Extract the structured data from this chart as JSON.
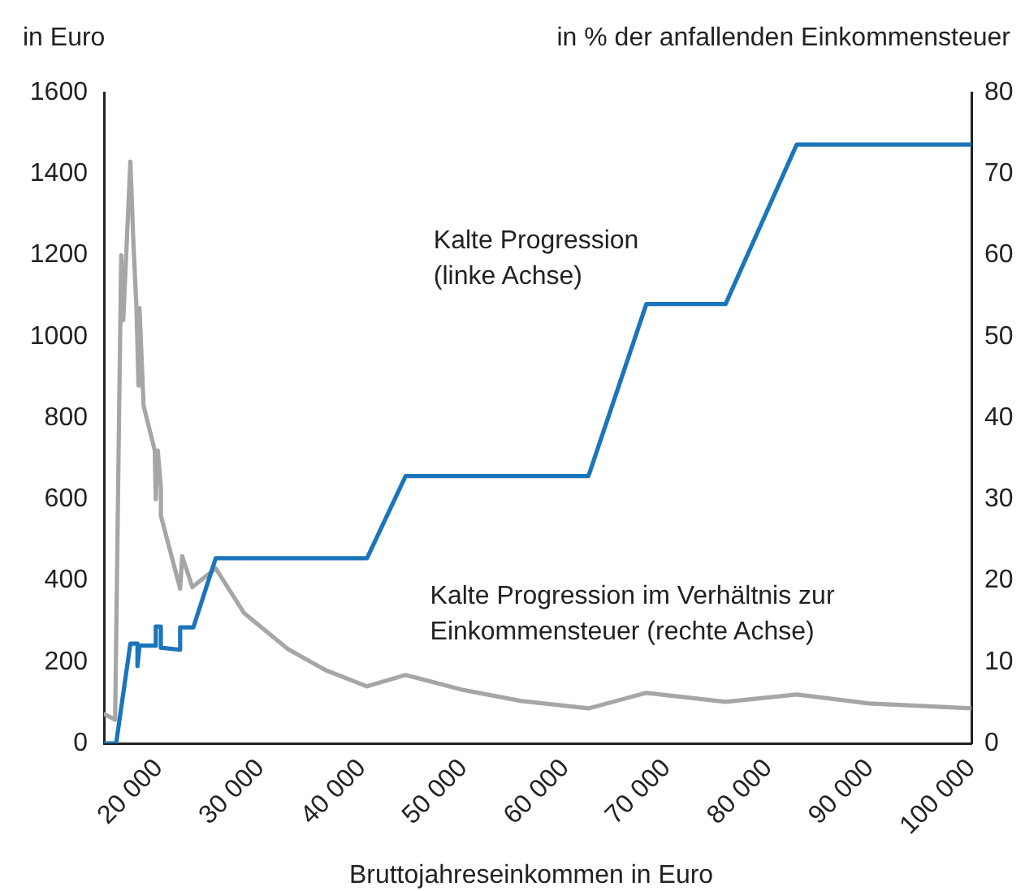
{
  "chart_data": {
    "type": "line",
    "ylabel": "in Euro",
    "y2label": "in % der anfallenden Einkommensteuer",
    "xlabel": "Bruttojahreseinkommen in Euro",
    "xlim": [
      14600,
      100000
    ],
    "xticks": [
      {
        "value": 20000,
        "label": "20 000"
      },
      {
        "value": 30000,
        "label": "30 000"
      },
      {
        "value": 40000,
        "label": "40 000"
      },
      {
        "value": 50000,
        "label": "50 000"
      },
      {
        "value": 60000,
        "label": "60 000"
      },
      {
        "value": 70000,
        "label": "70 000"
      },
      {
        "value": 80000,
        "label": "80 000"
      },
      {
        "value": 90000,
        "label": "90 000"
      },
      {
        "value": 100000,
        "label": "100 000"
      }
    ],
    "ylim": [
      0,
      1600
    ],
    "yticks": [
      0,
      200,
      400,
      600,
      800,
      1000,
      1200,
      1400,
      1600
    ],
    "y2lim": [
      0,
      80
    ],
    "y2ticks": [
      0,
      10,
      20,
      30,
      40,
      50,
      60,
      70,
      80
    ],
    "grid": false,
    "legend": false,
    "marker": "none",
    "line_style": "solid",
    "series": [
      {
        "name": "Kalte Progression\n(linke Achse)",
        "color": "#1a75bb",
        "axis": "y",
        "x": [
          14600,
          15800,
          17200,
          17900,
          17900,
          18100,
          19700,
          19700,
          20200,
          20200,
          22100,
          22100,
          23400,
          25600,
          40500,
          44300,
          62300,
          68000,
          75800,
          82800,
          100000
        ],
        "values": [
          0,
          0,
          245,
          245,
          190,
          240,
          240,
          287,
          287,
          235,
          230,
          285,
          285,
          455,
          455,
          657,
          657,
          1080,
          1080,
          1472,
          1472
        ]
      },
      {
        "name": "Kalte Progression im Verhältnis zur\nEinkommensteuer (rechte Achse)",
        "color": "#a6a6a6",
        "axis": "y2",
        "x": [
          14600,
          15700,
          16100,
          16300,
          16500,
          17200,
          17500,
          17800,
          18000,
          18100,
          18500,
          19600,
          19700,
          19900,
          20200,
          20200,
          22100,
          22300,
          23300,
          25600,
          28400,
          32700,
          36400,
          40500,
          44300,
          49800,
          55700,
          62300,
          68000,
          75800,
          82800,
          89900,
          100000
        ],
        "values": [
          3.6,
          2.9,
          41.5,
          60,
          52,
          71.5,
          61.5,
          53.5,
          44,
          53.5,
          41.5,
          36,
          30,
          36,
          31.5,
          28,
          19,
          23,
          19.2,
          21.5,
          16,
          11.6,
          9,
          7,
          8.4,
          6.6,
          5.2,
          4.3,
          6.2,
          5.1,
          6,
          4.9,
          4.3
        ]
      }
    ]
  }
}
